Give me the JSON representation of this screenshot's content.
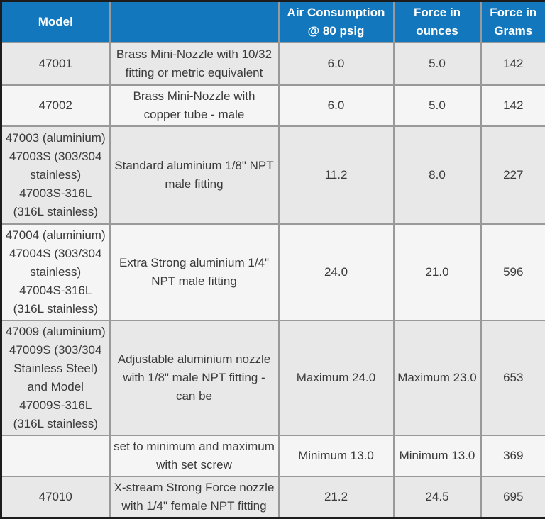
{
  "colors": {
    "header_bg": "#1377BD",
    "header_text": "#FFFFFF",
    "row_shade": "#E8E8E8",
    "row_light": "#F5F5F5",
    "grid_line": "#999999",
    "outer_border": "#1C1C1C",
    "body_text": "#3A3A3A"
  },
  "table": {
    "headers": [
      {
        "label": "Model"
      },
      {
        "label": ""
      },
      {
        "label": "Air Consumption\n@ 80 psig"
      },
      {
        "label": "Force in\nounces"
      },
      {
        "label": "Force in\nGrams"
      }
    ],
    "rows": [
      {
        "model": "47001",
        "description": "Brass Mini-Nozzle with 10/32\nfitting or metric equivalent",
        "air_consumption": "6.0",
        "force_ounces": "5.0",
        "force_grams": "142"
      },
      {
        "model": "47002",
        "description": "Brass Mini-Nozzle with\ncopper tube - male",
        "air_consumption": "6.0",
        "force_ounces": "5.0",
        "force_grams": "142"
      },
      {
        "model": "47003 (aluminium)\n47003S (303/304\nstainless)\n47003S-316L\n(316L stainless)",
        "description": "Standard aluminium 1/8\" NPT\nmale fitting",
        "air_consumption": "11.2",
        "force_ounces": "8.0",
        "force_grams": "227"
      },
      {
        "model": "47004 (aluminium)\n47004S (303/304\nstainless)\n47004S-316L\n(316L stainless)",
        "description": "Extra Strong aluminium 1/4\"\nNPT male fitting",
        "air_consumption": "24.0",
        "force_ounces": "21.0",
        "force_grams": "596"
      },
      {
        "model": "47009 (aluminium)\n47009S (303/304\nStainless Steel)\nand Model\n47009S-316L\n(316L stainless)",
        "description": "Adjustable aluminium nozzle\nwith 1/8\" male NPT fitting -\ncan be",
        "air_consumption": "Maximum 24.0",
        "force_ounces": "Maximum 23.0",
        "force_grams": "653"
      },
      {
        "model": "",
        "description": "set to minimum and maximum\nwith set screw",
        "air_consumption": "Minimum 13.0",
        "force_ounces": "Minimum 13.0",
        "force_grams": "369"
      },
      {
        "model": "47010",
        "description": "X-stream Strong Force nozzle\nwith 1/4\" female NPT fitting",
        "air_consumption": "21.2",
        "force_ounces": "24.5",
        "force_grams": "695"
      }
    ]
  }
}
